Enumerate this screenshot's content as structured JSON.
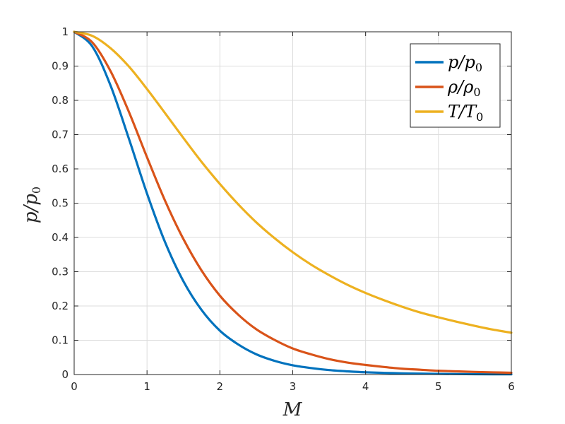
{
  "chart_data": {
    "type": "line",
    "xlabel": "M",
    "ylabel": "p/p0",
    "xlim": [
      0,
      6
    ],
    "ylim": [
      0,
      1
    ],
    "x_ticks": [
      0,
      1,
      2,
      3,
      4,
      5,
      6
    ],
    "y_ticks": [
      0,
      0.1,
      0.2,
      0.3,
      0.4,
      0.5,
      0.6,
      0.7,
      0.8,
      0.9,
      1
    ],
    "grid": true,
    "legend_position": "top-right",
    "x": [
      0,
      0.25,
      0.5,
      0.75,
      1,
      1.25,
      1.5,
      1.75,
      2,
      2.25,
      2.5,
      2.75,
      3,
      3.25,
      3.5,
      3.75,
      4,
      4.25,
      4.5,
      4.75,
      5,
      5.25,
      5.5,
      5.75,
      6
    ],
    "series": [
      {
        "name": "p/p0",
        "color": "#0072BD",
        "values": [
          1,
          0.957,
          0.843,
          0.689,
          0.528,
          0.385,
          0.272,
          0.188,
          0.128,
          0.088,
          0.059,
          0.04,
          0.027,
          0.019,
          0.013,
          0.0093,
          0.0066,
          0.0048,
          0.0035,
          0.0026,
          0.0019,
          0.0014,
          0.0011,
          0.0008,
          0.0006
        ]
      },
      {
        "name": "ρ/ρ0",
        "color": "#D95319",
        "values": [
          1,
          0.969,
          0.885,
          0.767,
          0.634,
          0.506,
          0.395,
          0.303,
          0.23,
          0.175,
          0.132,
          0.101,
          0.076,
          0.059,
          0.045,
          0.035,
          0.028,
          0.022,
          0.017,
          0.014,
          0.011,
          0.0093,
          0.0076,
          0.0063,
          0.0052
        ]
      },
      {
        "name": "T/T0",
        "color": "#EDB120",
        "values": [
          1,
          0.988,
          0.952,
          0.899,
          0.833,
          0.762,
          0.69,
          0.62,
          0.556,
          0.497,
          0.444,
          0.398,
          0.357,
          0.321,
          0.29,
          0.262,
          0.238,
          0.217,
          0.198,
          0.181,
          0.167,
          0.154,
          0.142,
          0.131,
          0.122
        ]
      }
    ]
  }
}
